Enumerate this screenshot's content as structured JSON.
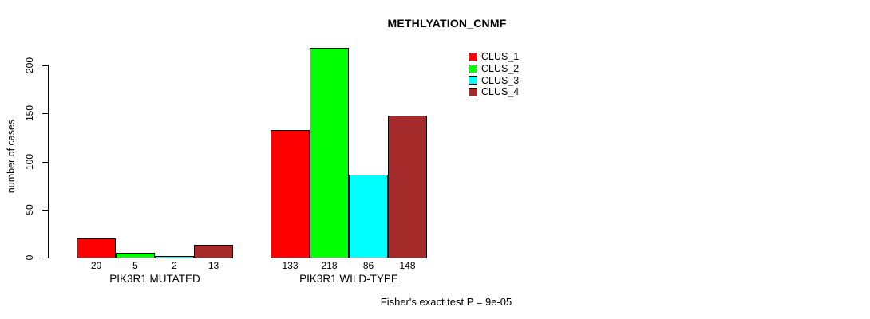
{
  "title": "METHLYATION_CNMF",
  "y_axis": {
    "label": "number of cases",
    "tick_labels": [
      "0",
      "50",
      "100",
      "150",
      "200"
    ]
  },
  "footer": "Fisher's exact test P = 9e-05",
  "colors": {
    "clus_1": "#ff0000",
    "clus_2": "#00ff00",
    "clus_3": "#00ffff",
    "clus_4": "#a52a2a",
    "axis": "#000000",
    "background": "#ffffff"
  },
  "chart_data": {
    "type": "bar",
    "title": "METHLYATION_CNMF",
    "xlabel": "",
    "ylabel": "number of cases",
    "categories": [
      "PIK3R1 MUTATED",
      "PIK3R1 WILD-TYPE"
    ],
    "series": [
      {
        "name": "CLUS_1",
        "color": "#ff0000",
        "values": [
          20,
          133
        ]
      },
      {
        "name": "CLUS_2",
        "color": "#00ff00",
        "values": [
          5,
          218
        ]
      },
      {
        "name": "CLUS_3",
        "color": "#00ffff",
        "values": [
          2,
          86
        ]
      },
      {
        "name": "CLUS_4",
        "color": "#a52a2a",
        "values": [
          13,
          148
        ]
      }
    ],
    "y_ticks": [
      0,
      50,
      100,
      150,
      200
    ],
    "ylim": [
      0,
      220
    ],
    "grid": false,
    "legend_position": "top-right",
    "bar_value_labels_shown": true,
    "annotation": "Fisher's exact test P = 9e-05"
  }
}
